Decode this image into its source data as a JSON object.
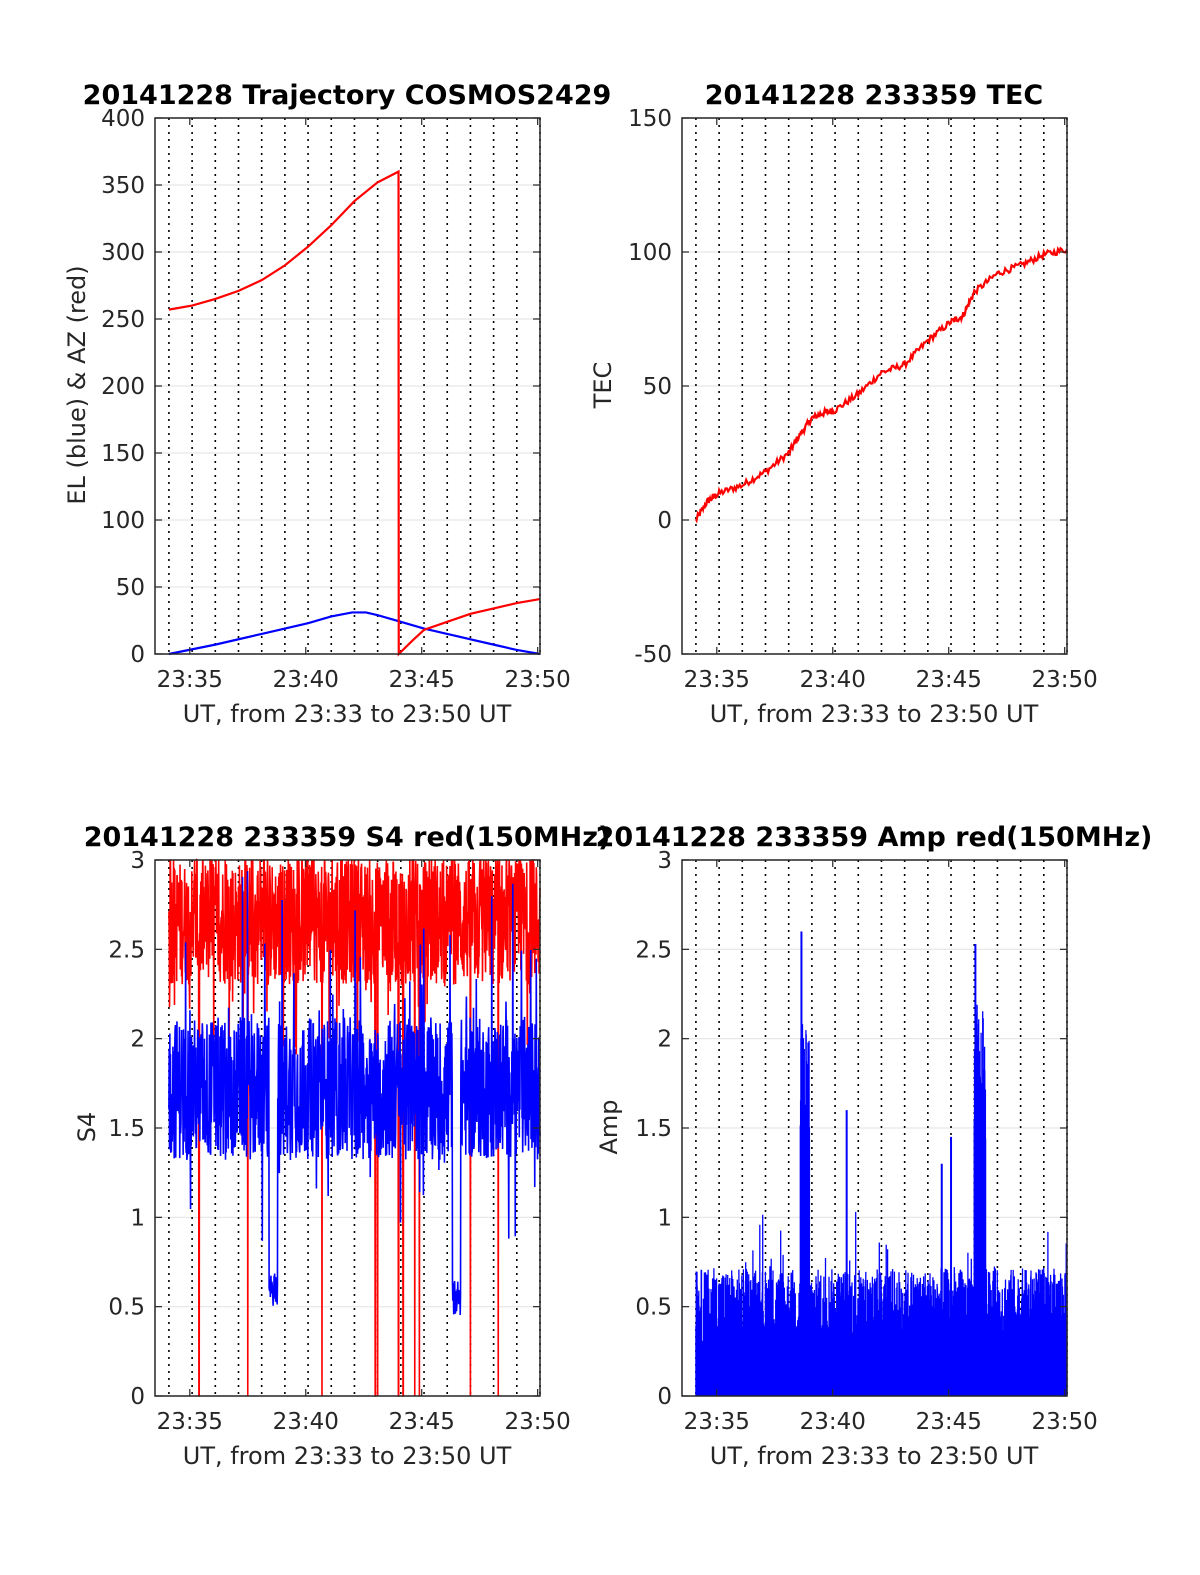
{
  "chart_data": [
    {
      "type": "line",
      "title": "20141228 Trajectory COSMOS2429",
      "xlabel": "UT, from 23:33 to 23:50 UT",
      "ylabel": "EL (blue) & AZ (red)",
      "x_tick_labels": [
        "23:35",
        "23:40",
        "23:45",
        "23:50"
      ],
      "x_ticks_min": [
        34.9,
        39.9,
        44.9,
        49.9
      ],
      "xlim_min": [
        33.4,
        50.0
      ],
      "ylim": [
        0,
        400
      ],
      "y_ticks": [
        0,
        50,
        100,
        150,
        200,
        250,
        300,
        350,
        400
      ],
      "grid": true,
      "series": [
        {
          "color": "#0000ff",
          "kind": "elevation",
          "x": [
            34.0,
            36.0,
            38.0,
            40.0,
            41.0,
            41.9,
            42.5,
            43.0,
            44.0,
            45.0,
            46.0,
            47.0,
            48.0,
            49.0,
            50.0
          ],
          "y": [
            0,
            7,
            15,
            23,
            28,
            31,
            31,
            29,
            24,
            19,
            15,
            11,
            7,
            3,
            0
          ]
        },
        {
          "color": "#ff0000",
          "kind": "azimuth",
          "x": [
            34.0,
            35.0,
            36.0,
            37.0,
            38.0,
            39.0,
            40.0,
            41.0,
            42.0,
            43.0,
            43.9,
            43.91,
            44.5,
            45.0,
            46.0,
            47.0,
            48.0,
            49.0,
            50.0
          ],
          "y": [
            257,
            260,
            265,
            271,
            279,
            290,
            304,
            320,
            338,
            352,
            360,
            0,
            10,
            18,
            24,
            30,
            34,
            38,
            41
          ]
        }
      ]
    },
    {
      "type": "line",
      "title": "20141228 233359 TEC",
      "xlabel": "UT, from 23:33 to 23:50 UT",
      "ylabel": "TEC",
      "x_tick_labels": [
        "23:35",
        "23:40",
        "23:45",
        "23:50"
      ],
      "x_ticks_min": [
        34.9,
        39.9,
        44.9,
        49.9
      ],
      "xlim_min": [
        33.4,
        50.0
      ],
      "ylim": [
        -50,
        150
      ],
      "y_ticks": [
        -50,
        0,
        50,
        100,
        150
      ],
      "grid": true,
      "series": [
        {
          "color": "#ff0000",
          "x": [
            34.0,
            34.5,
            35.0,
            36.0,
            37.0,
            38.0,
            38.5,
            39.0,
            39.5,
            40.0,
            41.0,
            42.0,
            43.0,
            44.0,
            45.0,
            45.5,
            46.0,
            47.0,
            48.0,
            49.0,
            50.0
          ],
          "y": [
            0,
            7,
            10,
            13,
            18,
            25,
            32,
            38,
            40,
            41,
            47,
            55,
            58,
            67,
            74,
            76,
            85,
            92,
            95,
            99,
            101
          ]
        }
      ]
    },
    {
      "type": "line",
      "title": "20141228 233359 S4 red(150MHz)",
      "xlabel": "UT, from 23:33 to 23:50 UT",
      "ylabel": "S4",
      "x_tick_labels": [
        "23:35",
        "23:40",
        "23:45",
        "23:50"
      ],
      "x_ticks_min": [
        34.9,
        39.9,
        44.9,
        49.9
      ],
      "xlim_min": [
        33.4,
        50.0
      ],
      "ylim": [
        0,
        3
      ],
      "y_ticks": [
        0,
        0.5,
        1,
        1.5,
        2,
        2.5,
        3
      ],
      "grid": true,
      "series": [
        {
          "color": "#ff0000",
          "kind": "noisy",
          "x_range": [
            34.0,
            50.0
          ],
          "base": 2.65,
          "spread": 0.35,
          "dropouts_min": [
            35.3,
            37.4,
            40.6,
            42.9,
            43.0,
            43.9,
            44.1,
            44.6,
            44.8,
            47.0,
            48.2
          ]
        },
        {
          "color": "#0000ff",
          "kind": "noisy",
          "x_range": [
            34.0,
            50.0
          ],
          "base": 1.72,
          "spread": 0.4,
          "dips": [
            {
              "x": 38.5,
              "y": 0.5
            },
            {
              "x": 46.4,
              "y": 0.45
            }
          ]
        }
      ]
    },
    {
      "type": "bar",
      "title": "20141228 233359 Amp red(150MHz)",
      "xlabel": "UT, from 23:33 to 23:50 UT",
      "ylabel": "Amp",
      "x_tick_labels": [
        "23:35",
        "23:40",
        "23:45",
        "23:50"
      ],
      "x_ticks_min": [
        34.9,
        39.9,
        44.9,
        49.9
      ],
      "xlim_min": [
        33.4,
        50.0
      ],
      "ylim": [
        0,
        3
      ],
      "y_ticks": [
        0,
        0.5,
        1,
        1.5,
        2,
        2.5,
        3
      ],
      "grid": true,
      "series": [
        {
          "color": "#0000ff",
          "kind": "noisy-spikes",
          "x_range": [
            34.0,
            50.0
          ],
          "base": 0.55,
          "spread": 0.2,
          "bursts": [
            {
              "x_min": 38.5,
              "x_max": 38.9,
              "y": 2.0,
              "peak": 2.6
            },
            {
              "x_min": 46.0,
              "x_max": 46.5,
              "y": 2.1,
              "peak": 2.53
            }
          ],
          "isolated_peaks": [
            {
              "x": 40.5,
              "y": 1.6
            },
            {
              "x": 44.6,
              "y": 1.3
            },
            {
              "x": 45.0,
              "y": 1.45
            }
          ]
        }
      ]
    }
  ]
}
